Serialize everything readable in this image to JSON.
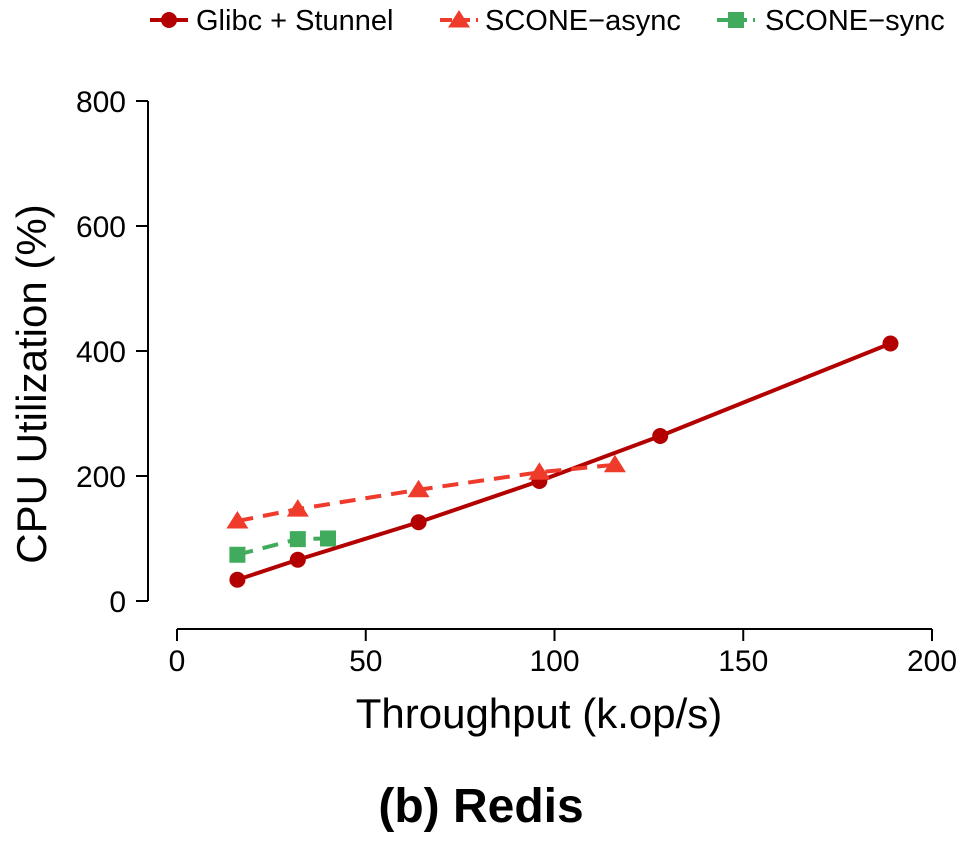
{
  "chart_data": {
    "type": "line",
    "title": "(b) Redis",
    "xlabel": "Throughput (k.op/s)",
    "ylabel": "CPU Utilization (%)",
    "xlim": [
      -8,
      200
    ],
    "ylim": [
      -40,
      800
    ],
    "xticks": [
      0,
      50,
      100,
      150,
      200
    ],
    "yticks": [
      0,
      200,
      400,
      600,
      800
    ],
    "grid": false,
    "legend_position": "top",
    "series": [
      {
        "name": "Glibc + Stunnel",
        "color": "#b30000",
        "marker": "circle",
        "dash": "solid",
        "x": [
          16,
          32,
          64,
          96,
          128,
          189
        ],
        "y": [
          34,
          66,
          126,
          192,
          264,
          412
        ]
      },
      {
        "name": "SCONE−async",
        "color": "#ef3b2c",
        "marker": "triangle",
        "dash": "dashed",
        "x": [
          16,
          32,
          64,
          96,
          116
        ],
        "y": [
          128,
          147,
          178,
          206,
          218
        ]
      },
      {
        "name": "SCONE−sync",
        "color": "#41ab5d",
        "marker": "square",
        "dash": "dashed",
        "x": [
          16,
          32,
          40
        ],
        "y": [
          74,
          99,
          100
        ]
      }
    ]
  }
}
